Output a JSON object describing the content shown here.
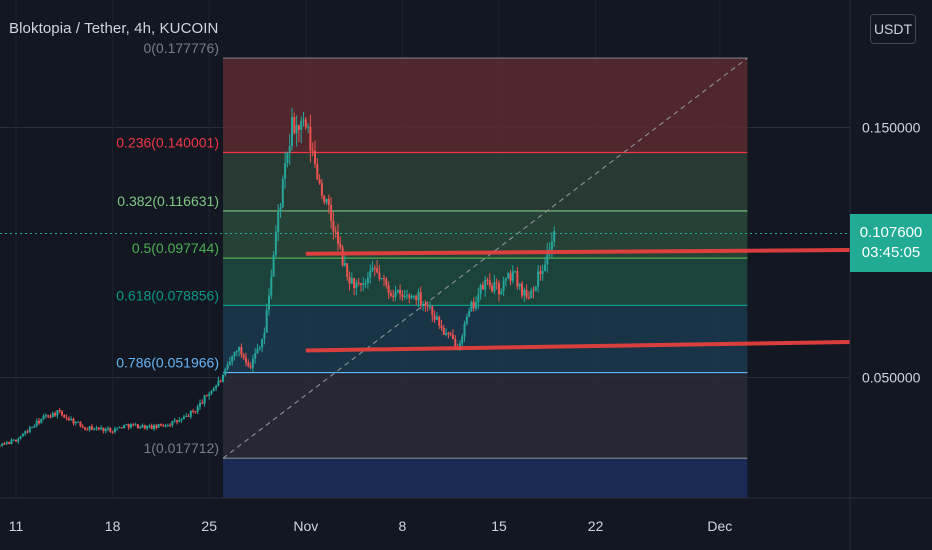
{
  "header": {
    "symbol_title": "Bloktopia / Tether, 4h, KUCOIN",
    "currency_button": "USDT"
  },
  "price_tag": {
    "price": "0.107600",
    "countdown": "03:45:05",
    "color": "#22ab94"
  },
  "colors": {
    "background": "#131722",
    "bull": "#26a69a",
    "bear": "#ef5350",
    "trend_line": "#e5403f",
    "text": "#d1d4dc"
  },
  "chart_data": {
    "type": "candlestick",
    "title": "Bloktopia / Tether, 4h, KUCOIN",
    "y_axis": {
      "unit": "USDT",
      "range": [
        0.003,
        0.185
      ],
      "ticks": [
        0.15,
        0.05
      ],
      "tick_labels": [
        "0.150000",
        "0.050000"
      ]
    },
    "x_axis": {
      "tick_labels": [
        "11",
        "18",
        "25",
        "Nov",
        "8",
        "15",
        "22",
        "Dec"
      ],
      "tick_dates": [
        "2021-10-11",
        "2021-10-18",
        "2021-10-25",
        "2021-11-01",
        "2021-11-08",
        "2021-11-15",
        "2021-11-22",
        "2021-12-01"
      ]
    },
    "current_price": 0.1076,
    "countdown": "03:45:05",
    "fib_retracement": {
      "start_date": "2021-10-26",
      "end_date": "2021-12-03",
      "levels": [
        {
          "ratio": "0",
          "price": 0.177776,
          "label": "0(0.177776)",
          "color": "#787b86"
        },
        {
          "ratio": "0.236",
          "price": 0.140001,
          "label": "0.236(0.140001)",
          "color": "#f23645"
        },
        {
          "ratio": "0.382",
          "price": 0.116631,
          "label": "0.382(0.116631)",
          "color": "#81c784"
        },
        {
          "ratio": "0.5",
          "price": 0.097744,
          "label": "0.5(0.097744)",
          "color": "#4caf50"
        },
        {
          "ratio": "0.618",
          "price": 0.078856,
          "label": "0.618(0.078856)",
          "color": "#089981"
        },
        {
          "ratio": "0.786",
          "price": 0.051966,
          "label": "0.786(0.051966)",
          "color": "#64b5f6"
        },
        {
          "ratio": "1",
          "price": 0.017712,
          "label": "1(0.017712)",
          "color": "#787b86"
        }
      ]
    },
    "trend_lines": [
      {
        "from": [
          "2021-11-01",
          0.0995
        ],
        "to": [
          "2021-12-20",
          0.101
        ],
        "color": "#e5403f"
      },
      {
        "from": [
          "2021-11-01",
          0.0608
        ],
        "to": [
          "2021-12-20",
          0.0642
        ],
        "color": "#e5403f"
      }
    ],
    "price_path": [
      [
        "2021-10-07",
        0.019
      ],
      [
        "2021-10-09",
        0.021
      ],
      [
        "2021-10-11",
        0.025
      ],
      [
        "2021-10-13",
        0.034
      ],
      [
        "2021-10-14",
        0.036
      ],
      [
        "2021-10-16",
        0.03
      ],
      [
        "2021-10-18",
        0.029
      ],
      [
        "2021-10-19",
        0.031
      ],
      [
        "2021-10-21",
        0.03
      ],
      [
        "2021-10-23",
        0.033
      ],
      [
        "2021-10-24",
        0.037
      ],
      [
        "2021-10-25",
        0.044
      ],
      [
        "2021-10-26",
        0.05
      ],
      [
        "2021-10-27",
        0.062
      ],
      [
        "2021-10-28",
        0.055
      ],
      [
        "2021-10-29",
        0.068
      ],
      [
        "2021-10-30",
        0.115
      ],
      [
        "2021-10-31",
        0.15
      ],
      [
        "2021-11-01",
        0.15
      ],
      [
        "2021-11-02",
        0.128
      ],
      [
        "2021-11-03",
        0.11
      ],
      [
        "2021-11-04",
        0.09
      ],
      [
        "2021-11-05",
        0.085
      ],
      [
        "2021-11-06",
        0.093
      ],
      [
        "2021-11-07",
        0.085
      ],
      [
        "2021-11-08",
        0.082
      ],
      [
        "2021-11-09",
        0.083
      ],
      [
        "2021-11-10",
        0.078
      ],
      [
        "2021-11-11",
        0.068
      ],
      [
        "2021-11-12",
        0.063
      ],
      [
        "2021-11-13",
        0.078
      ],
      [
        "2021-11-14",
        0.088
      ],
      [
        "2021-11-15",
        0.085
      ],
      [
        "2021-11-16",
        0.092
      ],
      [
        "2021-11-17",
        0.082
      ],
      [
        "2021-11-18",
        0.092
      ],
      [
        "2021-11-19",
        0.1076
      ]
    ]
  }
}
